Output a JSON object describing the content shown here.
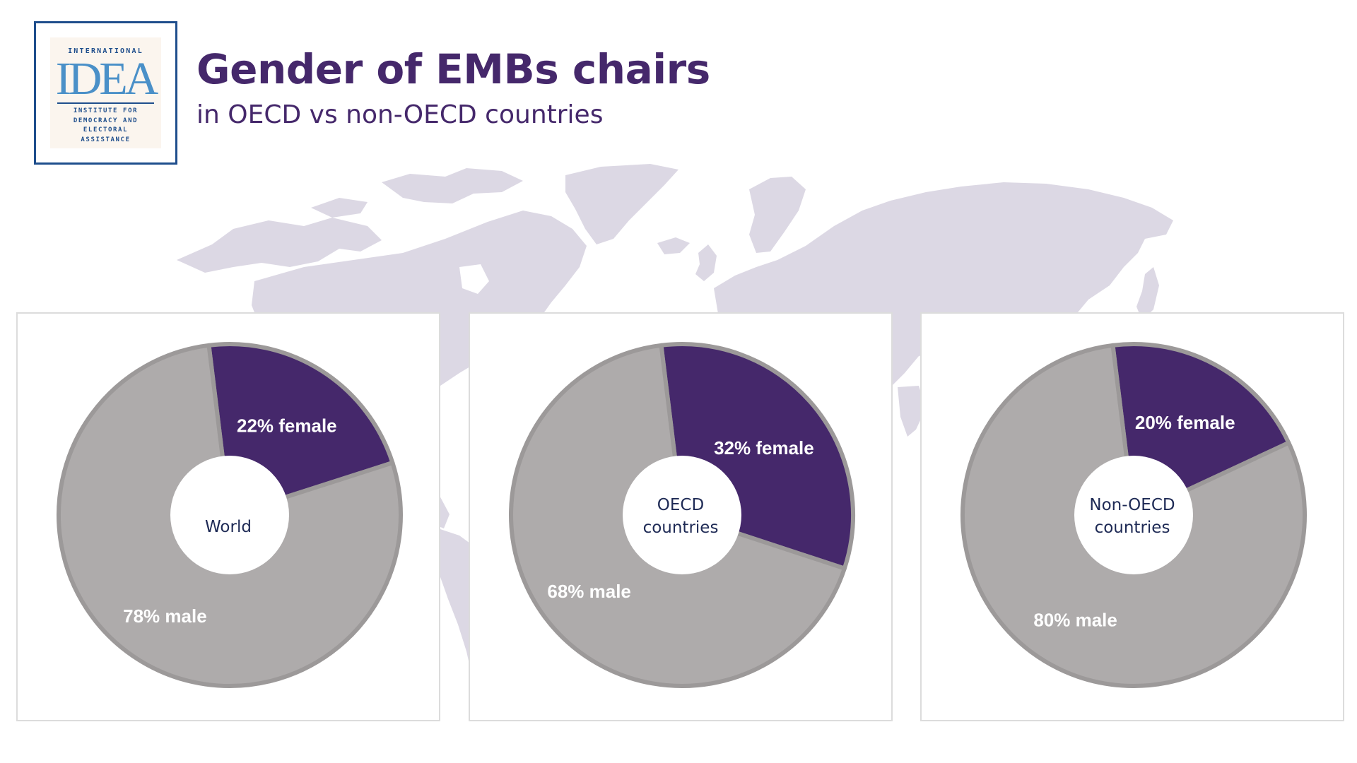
{
  "logo": {
    "top_text": "INTERNATIONAL",
    "mark": "IDEA",
    "sub_text": "INSTITUTE FOR\nDEMOCRACY AND\nELECTORAL\nASSISTANCE"
  },
  "header": {
    "title": "Gender of EMBs chairs",
    "subtitle": "in OECD vs non-OECD countries"
  },
  "colors": {
    "female": "#45286b",
    "male": "#aeabab",
    "outline": "#9c9999",
    "map": "#dcd8e4"
  },
  "chart_data": [
    {
      "type": "pie",
      "center_label": "World",
      "slices": [
        {
          "label": "22% female",
          "value": 22,
          "category": "female"
        },
        {
          "label": "78% male",
          "value": 78,
          "category": "male"
        }
      ]
    },
    {
      "type": "pie",
      "center_label": "OECD\ncountries",
      "slices": [
        {
          "label": "32% female",
          "value": 32,
          "category": "female"
        },
        {
          "label": "68% male",
          "value": 68,
          "category": "male"
        }
      ]
    },
    {
      "type": "pie",
      "center_label": "Non-OECD\ncountries",
      "slices": [
        {
          "label": "20% female",
          "value": 20,
          "category": "female"
        },
        {
          "label": "80% male",
          "value": 80,
          "category": "male"
        }
      ]
    }
  ]
}
